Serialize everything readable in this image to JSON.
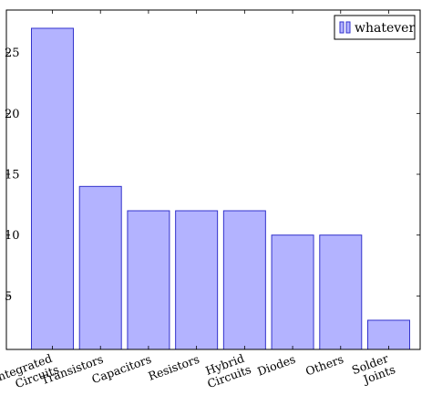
{
  "chart_data": {
    "type": "bar",
    "categories": [
      [
        "Integrated",
        "Circuits"
      ],
      [
        "Transistors"
      ],
      [
        "Capacitors"
      ],
      [
        "Resistors"
      ],
      [
        "Hybrid",
        "Circuits"
      ],
      [
        "Diodes"
      ],
      [
        "Others"
      ],
      [
        "Solder",
        "Joints"
      ]
    ],
    "series": [
      {
        "name": "whatever",
        "values": [
          27,
          14,
          12,
          12,
          12,
          10,
          10,
          3
        ]
      }
    ],
    "title": "",
    "xlabel": "",
    "ylabel": "",
    "ylim": [
      0.6,
      28.5
    ],
    "yticks": [
      5,
      10,
      15,
      20,
      25
    ],
    "grid": false,
    "legend_position": "top-right",
    "colors": {
      "bar_fill": "#b3b3ff",
      "bar_stroke": "#3333cc",
      "axis": "#000000"
    }
  }
}
